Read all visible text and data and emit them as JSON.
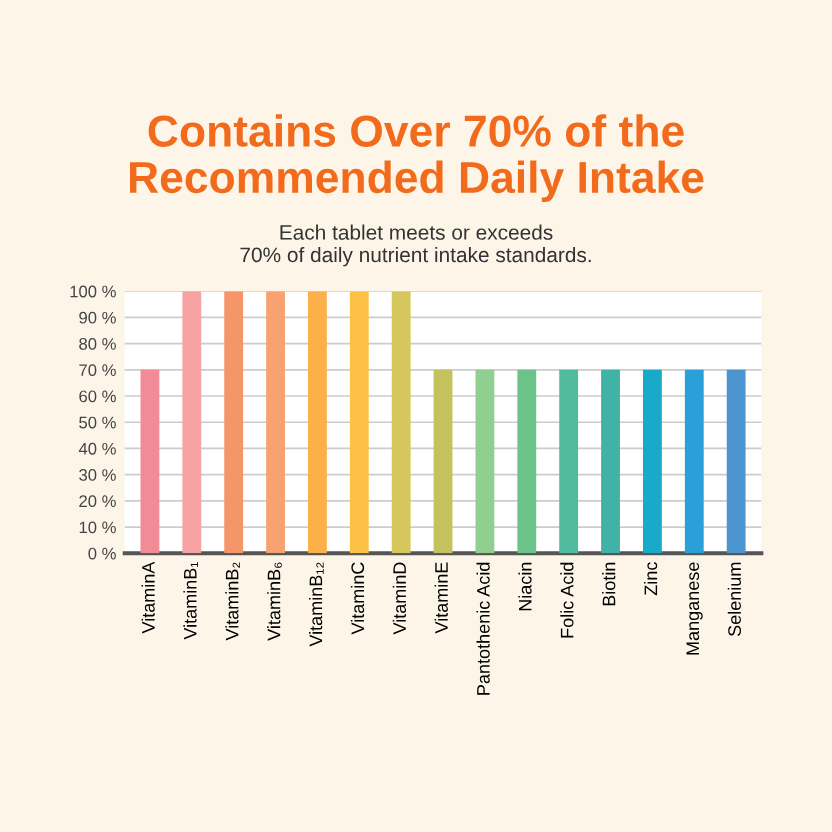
{
  "chart_data": {
    "type": "bar",
    "title": "Contains Over 70% of the\nRecommended Daily Intake",
    "subtitle": "Each tablet meets or exceeds\n70% of daily nutrient intake standards.",
    "categories": [
      "VitaminA",
      "VitaminB₁",
      "VitaminB₂",
      "VitaminB₆",
      "VitaminB₁₂",
      "VitaminC",
      "VitaminD",
      "VitaminE",
      "Pantothenic Acid",
      "Niacin",
      "Folic Acid",
      "Biotin",
      "Zinc",
      "Manganese",
      "Selenium"
    ],
    "values": [
      70,
      100,
      100,
      100,
      100,
      100,
      100,
      70,
      70,
      70,
      70,
      70,
      70,
      70,
      70
    ],
    "colors": [
      "#f28b96",
      "#f5a3a3",
      "#f5966a",
      "#f8a272",
      "#fbb04a",
      "#fdc245",
      "#d6c75c",
      "#c3c25c",
      "#90cf8f",
      "#6cc38a",
      "#50bb9e",
      "#40b3a6",
      "#18aac8",
      "#2aa0d8",
      "#4c95d0"
    ],
    "ylim": [
      0,
      100
    ],
    "yticks": [
      {
        "value": 0,
        "label": "0 %"
      },
      {
        "value": 10,
        "label": "10 %"
      },
      {
        "value": 20,
        "label": "20 %"
      },
      {
        "value": 30,
        "label": "30 %"
      },
      {
        "value": 40,
        "label": "40 %"
      },
      {
        "value": 50,
        "label": "50 %"
      },
      {
        "value": 60,
        "label": "60 %"
      },
      {
        "value": 70,
        "label": "70 %"
      },
      {
        "value": 80,
        "label": "80 %"
      },
      {
        "value": 90,
        "label": "90 %"
      },
      {
        "value": 100,
        "label": "100 %"
      }
    ],
    "grid": "y"
  }
}
